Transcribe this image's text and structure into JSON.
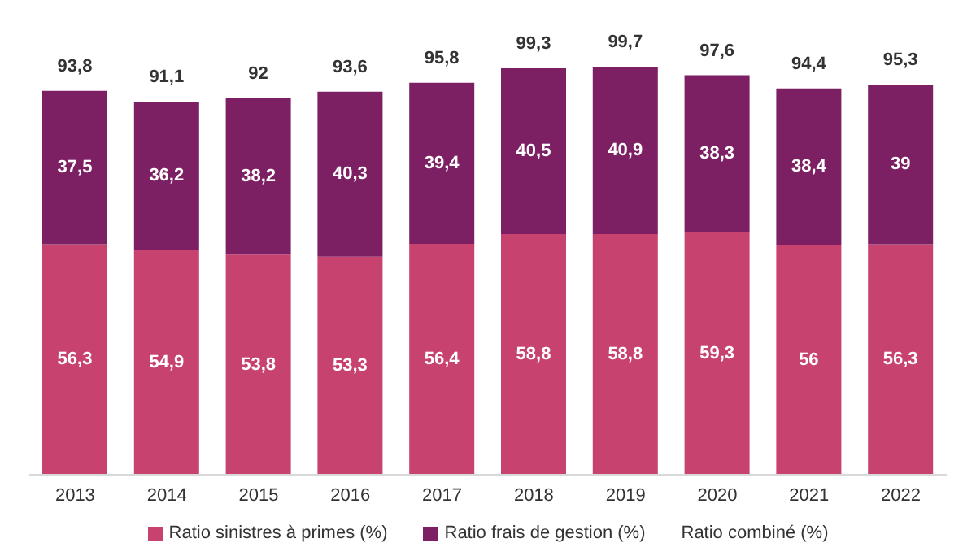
{
  "chart_data": {
    "type": "bar",
    "stacked": true,
    "categories": [
      "2013",
      "2014",
      "2015",
      "2016",
      "2017",
      "2018",
      "2019",
      "2020",
      "2021",
      "2022"
    ],
    "series": [
      {
        "name": "Ratio sinistres à primes (%)",
        "color": "#c8426f",
        "values": [
          56.3,
          54.9,
          53.8,
          53.3,
          56.4,
          58.8,
          58.8,
          59.3,
          56,
          56.3
        ],
        "value_labels": [
          "56,3",
          "54,9",
          "53,8",
          "53,3",
          "56,4",
          "58,8",
          "58,8",
          "59,3",
          "56",
          "56,3"
        ]
      },
      {
        "name": "Ratio frais de gestion (%)",
        "color": "#7c1f63",
        "values": [
          37.5,
          36.2,
          38.2,
          40.3,
          39.4,
          40.5,
          40.9,
          38.3,
          38.4,
          39
        ],
        "value_labels": [
          "37,5",
          "36,2",
          "38,2",
          "40,3",
          "39,4",
          "40,5",
          "40,9",
          "38,3",
          "38,4",
          "39"
        ]
      }
    ],
    "totals": [
      "93,8",
      "91,1",
      "92",
      "93,6",
      "95,8",
      "99,3",
      "99,7",
      "97,6",
      "94,4",
      "95,3"
    ],
    "legend_title": "Ratio combiné (%)",
    "legend": "bottom"
  }
}
